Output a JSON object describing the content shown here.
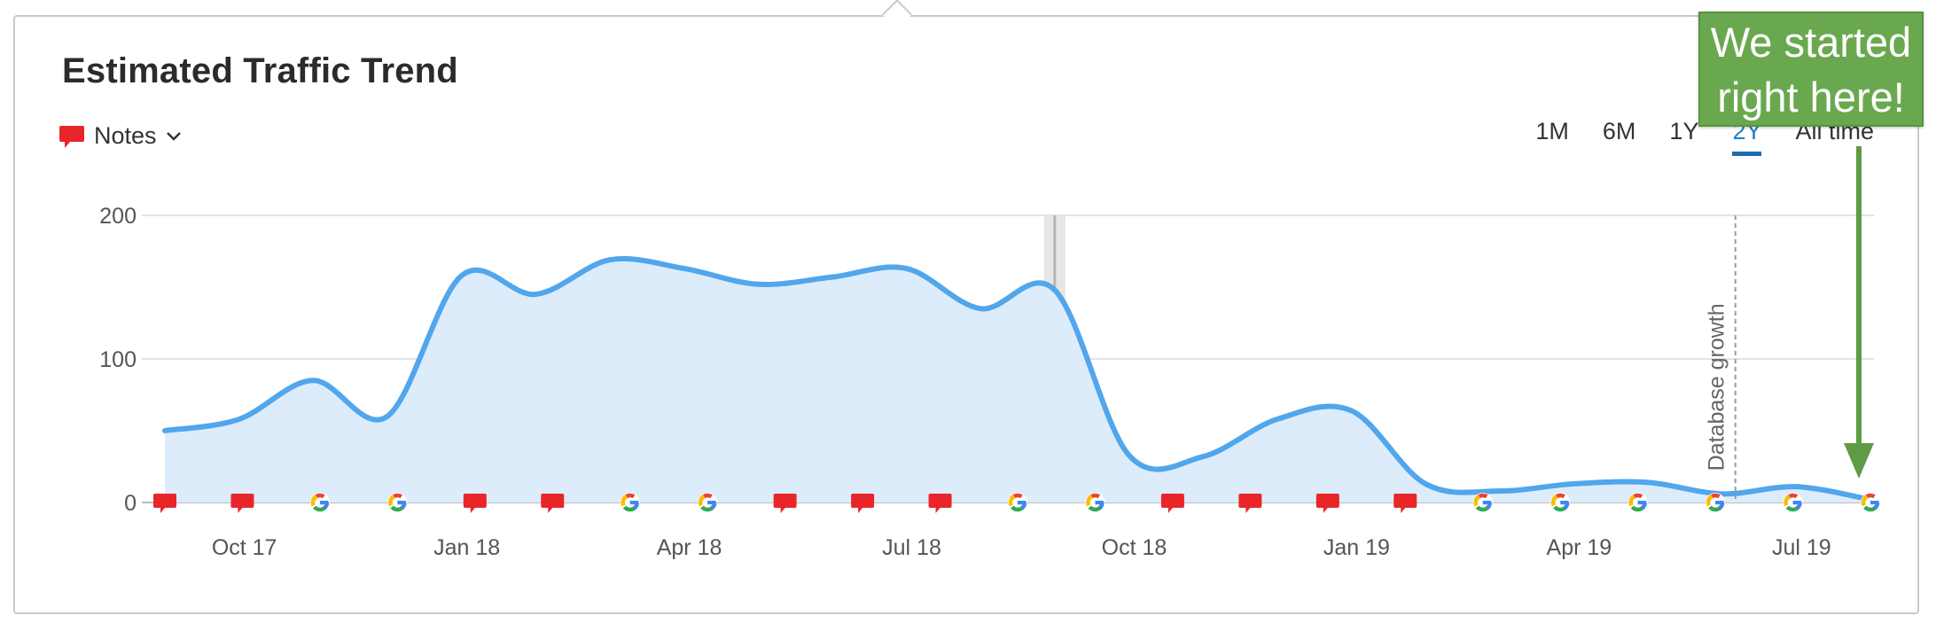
{
  "title": "Estimated Traffic Trend",
  "notes_label": "Notes",
  "periods": [
    {
      "label": "1M",
      "active": false
    },
    {
      "label": "6M",
      "active": false
    },
    {
      "label": "1Y",
      "active": false
    },
    {
      "label": "2Y",
      "active": true
    },
    {
      "label": "All time",
      "active": false
    }
  ],
  "callout": {
    "line1": "We started",
    "line2": "right here!"
  },
  "colors": {
    "line": "#51a6ec",
    "area": "#ddecfb",
    "grid": "#d9d9d9",
    "note_marker": "#e8262a",
    "active_period": "#1c6db2",
    "callout_bg": "#6aa84f",
    "callout_arrow": "#5f9b45"
  },
  "chart_data": {
    "type": "area",
    "ylim": [
      0,
      200
    ],
    "yticks": [
      0,
      100,
      200
    ],
    "x_axis_labels": [
      "Oct 17",
      "Jan 18",
      "Apr 18",
      "Jul 18",
      "Oct 18",
      "Jan 19",
      "Apr 19",
      "Jul 19"
    ],
    "series": [
      {
        "x": [
          "Sep 17",
          "Oct 17",
          "Nov 17",
          "Dec 17",
          "Jan 18",
          "Feb 18",
          "Mar 18",
          "Apr 18",
          "May 18",
          "Jun 18",
          "Jul 18",
          "Aug 18",
          "Sep 18",
          "Oct 18",
          "Nov 18",
          "Dec 18",
          "Jan 19",
          "Feb 19",
          "Mar 19",
          "Apr 19",
          "May 19",
          "Jun 19",
          "Jul 19",
          "Aug 19"
        ],
        "values": [
          50,
          58,
          85,
          60,
          158,
          145,
          169,
          163,
          152,
          157,
          163,
          135,
          148,
          33,
          32,
          58,
          64,
          13,
          8,
          13,
          14,
          6,
          11,
          2
        ]
      }
    ],
    "annotations": [
      {
        "type": "vertical-line",
        "x": "Jun 19",
        "label": "Database growth"
      },
      {
        "type": "highlight",
        "x": "Sep 18"
      }
    ],
    "markers": [
      "note",
      "note",
      "google",
      "google",
      "note",
      "note",
      "google",
      "google",
      "note",
      "note",
      "note",
      "google",
      "google",
      "note",
      "note",
      "note",
      "note",
      "google",
      "google",
      "google",
      "google",
      "google",
      "google"
    ]
  }
}
